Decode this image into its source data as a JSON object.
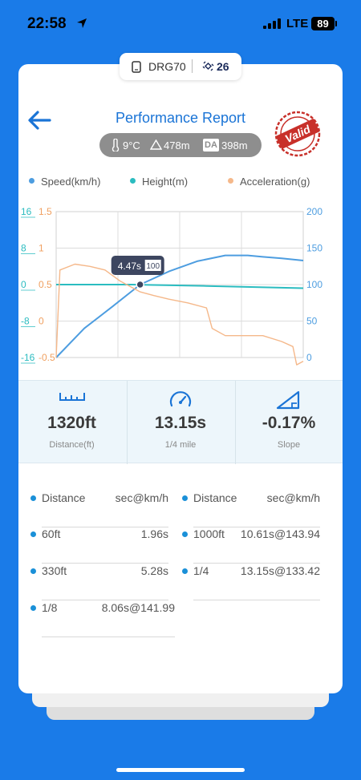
{
  "status_bar": {
    "time": "22:58",
    "network": "LTE",
    "battery": "89"
  },
  "device": {
    "name": "DRG70",
    "satellites": "26"
  },
  "header": {
    "title": "Performance Report",
    "stamp_text": "Valid"
  },
  "conditions": {
    "temperature": "9°C",
    "altitude": "478m",
    "da_label": "DA",
    "density_altitude": "398m"
  },
  "chart_data": {
    "type": "line",
    "series": [
      {
        "name": "Speed(km/h)",
        "color": "#4d9de0",
        "axis": "right",
        "x": [
          0,
          1.5,
          3,
          4.47,
          6,
          7.5,
          9,
          10.2,
          11,
          12,
          13.15
        ],
        "values": [
          0,
          40,
          70,
          100,
          118,
          132,
          140,
          140,
          138,
          136,
          133
        ]
      },
      {
        "name": "Height(m)",
        "color": "#2bbcc0",
        "axis": "left-teal",
        "x": [
          0,
          4,
          8,
          13.15
        ],
        "values": [
          0,
          0,
          -0.3,
          -0.8
        ]
      },
      {
        "name": "Acceleration(g)",
        "color": "#f5b88a",
        "axis": "left-orange",
        "x": [
          0,
          0.2,
          1,
          1.8,
          2.6,
          3.4,
          4.47,
          5.2,
          6,
          7,
          8,
          8.3,
          9,
          10,
          11,
          12,
          12.6,
          12.8,
          13.15
        ],
        "values": [
          -0.5,
          0.7,
          0.78,
          0.75,
          0.7,
          0.55,
          0.4,
          0.35,
          0.3,
          0.25,
          0.18,
          -0.1,
          -0.2,
          -0.2,
          -0.2,
          -0.28,
          -0.35,
          -0.6,
          -0.55
        ]
      }
    ],
    "x_range": [
      0,
      13.15
    ],
    "left_axis_teal": {
      "ticks": [
        "16",
        "8",
        "0",
        "-8",
        "-16"
      ],
      "range": [
        -16,
        16
      ]
    },
    "left_axis_orange": {
      "ticks": [
        "1.5",
        "1",
        "0.5",
        "0",
        "-0.5"
      ],
      "range": [
        -0.5,
        1.5
      ]
    },
    "right_axis": {
      "ticks": [
        "200",
        "150",
        "100",
        "50",
        "0"
      ],
      "range": [
        0,
        200
      ]
    },
    "marker": {
      "x": 4.47,
      "label": "4.47s",
      "badge": "100"
    },
    "grid": true,
    "legend_position": "top"
  },
  "stats": [
    {
      "value": "1320ft",
      "label": "Distance(ft)",
      "icon": "ruler-icon"
    },
    {
      "value": "13.15s",
      "label": "1/4 mile",
      "icon": "speedometer-icon"
    },
    {
      "value": "-0.17%",
      "label": "Slope",
      "icon": "slope-icon"
    }
  ],
  "splits": {
    "header_left": {
      "label": "Distance",
      "value": "sec@km/h"
    },
    "header_right": {
      "label": "Distance",
      "value": "sec@km/h"
    },
    "left": [
      {
        "label": "60ft",
        "value": "1.96s"
      },
      {
        "label": "330ft",
        "value": "5.28s"
      },
      {
        "label": "1/8",
        "value": "8.06s@141.99"
      }
    ],
    "right": [
      {
        "label": "1000ft",
        "value": "10.61s@143.94"
      },
      {
        "label": "1/4",
        "value": "13.15s@133.42"
      }
    ]
  },
  "colors": {
    "background": "#1a7be8",
    "accent": "#1a74d6",
    "speed": "#4d9de0",
    "height": "#2bbcc0",
    "accel": "#f5b88a",
    "stamp": "#c8302a"
  }
}
